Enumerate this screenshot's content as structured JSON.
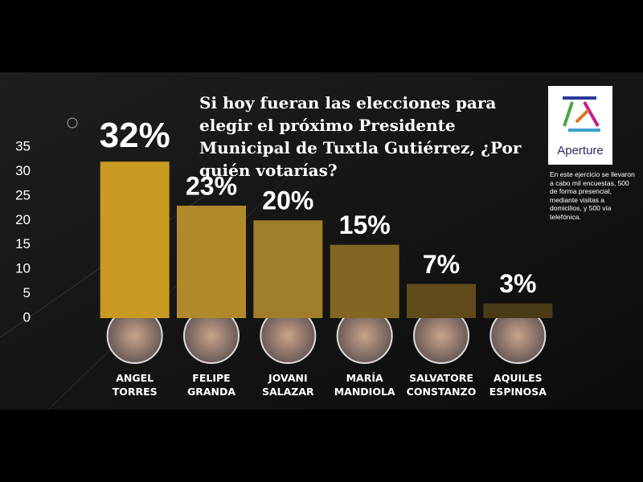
{
  "chart_data": {
    "type": "bar",
    "title": "Si hoy fueran las elecciones para elegir el próximo Presidente Municipal de Tuxtla Gutiérrez, ¿Por quién votarías?",
    "categories": [
      "ANGEL TORRES",
      "FELIPE GRANDA",
      "JOVANI SALAZAR",
      "MARÍA MANDIOLA",
      "SALVATORE CONSTANZO",
      "AQUILES ESPINOSA"
    ],
    "values": [
      32,
      23,
      20,
      15,
      7,
      3
    ],
    "value_labels": [
      "32%",
      "23%",
      "20%",
      "15%",
      "7%",
      "3%"
    ],
    "colors": [
      "#c99a22",
      "#b08a2a",
      "#a07e2a",
      "#826622",
      "#5f4b1a",
      "#4a3a15"
    ],
    "ylim": [
      0,
      35
    ],
    "yticks": [
      0,
      5,
      10,
      15,
      20,
      25,
      30,
      35
    ],
    "logo": "Aperture",
    "note": "En este ejercicio se llevaron a cabo mil encuestas, 500 de forma presencial, mediante visitas a domicilios, y 500  vía telefónica."
  }
}
